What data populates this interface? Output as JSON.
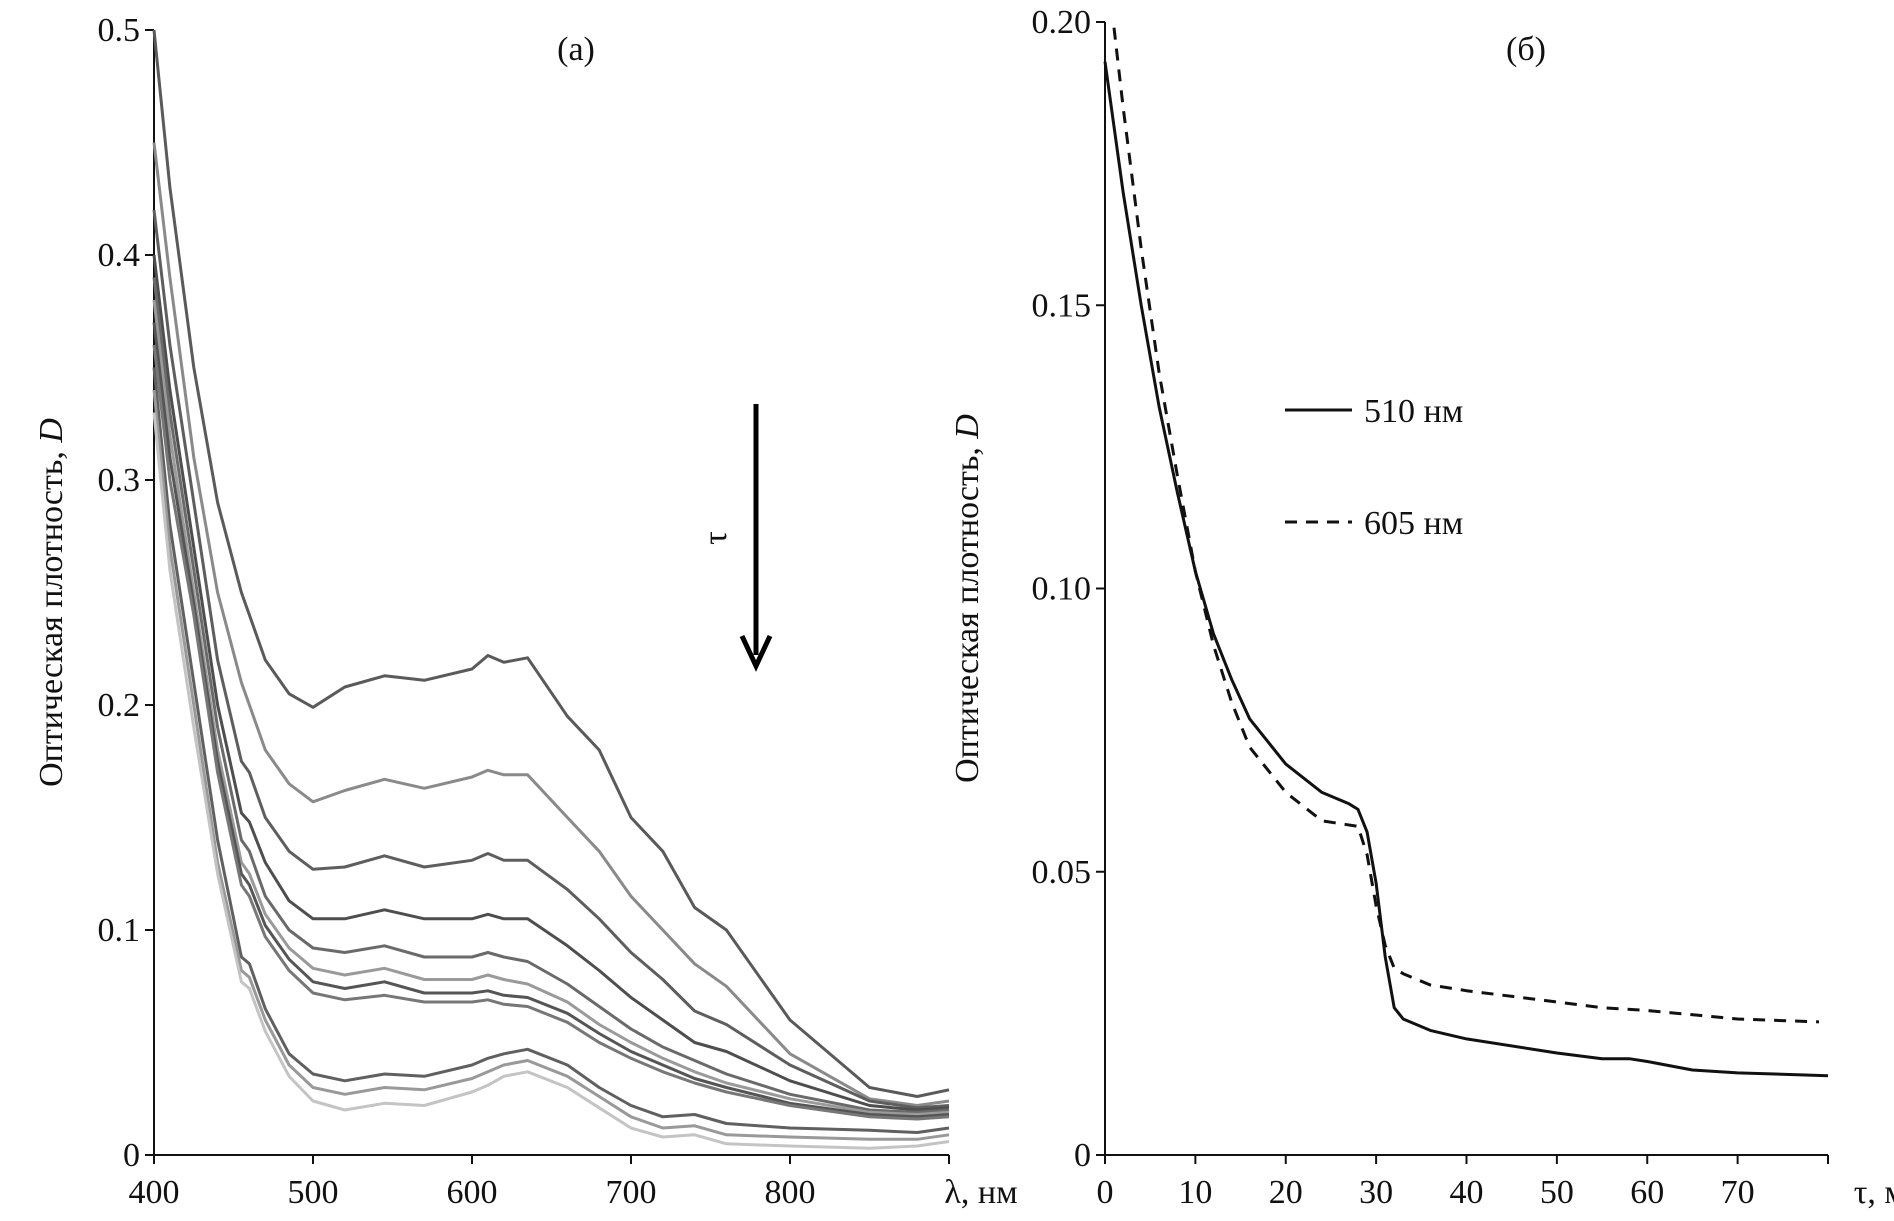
{
  "chart_data": [
    {
      "type": "line",
      "panel_label": "(a)",
      "ylabel_prefix": "Оптическая плотность, ",
      "ylabel_italic": "D",
      "xlabel": "λ, нм",
      "xlim": [
        400,
        900
      ],
      "ylim": [
        0,
        0.5
      ],
      "xticks": [
        400,
        500,
        600,
        700,
        800,
        900
      ],
      "xtick_labels": [
        "400",
        "500",
        "600",
        "700",
        "800",
        ""
      ],
      "yticks": [
        0,
        0.1,
        0.2,
        0.3,
        0.4,
        0.5
      ],
      "ytick_labels": [
        "0",
        "0.1",
        "0.2",
        "0.3",
        "0.4",
        "0.5"
      ],
      "grid": false,
      "annotation": {
        "text": "τ",
        "arrow": "down",
        "meaning": "increasing time"
      },
      "x": [
        400,
        410,
        425,
        440,
        455,
        460,
        470,
        485,
        500,
        520,
        545,
        570,
        600,
        610,
        620,
        635,
        660,
        680,
        700,
        720,
        740,
        760,
        800,
        850,
        880,
        900
      ],
      "series": [
        {
          "color": "#5a5a5a",
          "values": [
            0.5,
            0.43,
            0.35,
            0.29,
            0.25,
            0.24,
            0.22,
            0.205,
            0.199,
            0.208,
            0.213,
            0.211,
            0.216,
            0.222,
            0.219,
            0.221,
            0.195,
            0.18,
            0.15,
            0.135,
            0.11,
            0.1,
            0.06,
            0.03,
            0.026,
            0.029
          ]
        },
        {
          "color": "#8a8a8a",
          "values": [
            0.45,
            0.39,
            0.31,
            0.25,
            0.21,
            0.2,
            0.18,
            0.165,
            0.157,
            0.162,
            0.167,
            0.163,
            0.168,
            0.171,
            0.169,
            0.169,
            0.15,
            0.135,
            0.115,
            0.1,
            0.085,
            0.075,
            0.045,
            0.025,
            0.022,
            0.024
          ]
        },
        {
          "color": "#5e5e5e",
          "values": [
            0.42,
            0.36,
            0.29,
            0.22,
            0.175,
            0.17,
            0.15,
            0.135,
            0.127,
            0.128,
            0.133,
            0.128,
            0.131,
            0.134,
            0.131,
            0.131,
            0.118,
            0.105,
            0.09,
            0.078,
            0.064,
            0.058,
            0.04,
            0.024,
            0.021,
            0.022
          ]
        },
        {
          "color": "#4e4e4e",
          "values": [
            0.4,
            0.34,
            0.27,
            0.2,
            0.152,
            0.148,
            0.13,
            0.113,
            0.105,
            0.105,
            0.109,
            0.105,
            0.105,
            0.107,
            0.105,
            0.105,
            0.093,
            0.082,
            0.07,
            0.06,
            0.05,
            0.046,
            0.033,
            0.022,
            0.02,
            0.021
          ]
        },
        {
          "color": "#6a6a6a",
          "values": [
            0.39,
            0.33,
            0.26,
            0.19,
            0.14,
            0.135,
            0.115,
            0.1,
            0.092,
            0.09,
            0.093,
            0.088,
            0.088,
            0.09,
            0.088,
            0.086,
            0.076,
            0.066,
            0.056,
            0.048,
            0.042,
            0.036,
            0.027,
            0.02,
            0.019,
            0.02
          ]
        },
        {
          "color": "#9a9a9a",
          "values": [
            0.38,
            0.32,
            0.25,
            0.18,
            0.13,
            0.125,
            0.107,
            0.092,
            0.083,
            0.08,
            0.083,
            0.078,
            0.078,
            0.08,
            0.078,
            0.076,
            0.068,
            0.058,
            0.05,
            0.043,
            0.037,
            0.032,
            0.025,
            0.019,
            0.018,
            0.019
          ]
        },
        {
          "color": "#555555",
          "values": [
            0.37,
            0.31,
            0.245,
            0.175,
            0.125,
            0.12,
            0.102,
            0.087,
            0.077,
            0.074,
            0.077,
            0.072,
            0.072,
            0.073,
            0.071,
            0.07,
            0.063,
            0.054,
            0.046,
            0.04,
            0.034,
            0.03,
            0.023,
            0.018,
            0.017,
            0.018
          ]
        },
        {
          "color": "#777777",
          "values": [
            0.36,
            0.3,
            0.24,
            0.17,
            0.12,
            0.115,
            0.097,
            0.082,
            0.072,
            0.069,
            0.071,
            0.068,
            0.068,
            0.069,
            0.067,
            0.066,
            0.059,
            0.05,
            0.043,
            0.037,
            0.032,
            0.028,
            0.022,
            0.017,
            0.016,
            0.017
          ]
        },
        {
          "color": "#606060",
          "values": [
            0.35,
            0.28,
            0.21,
            0.14,
            0.088,
            0.085,
            0.065,
            0.045,
            0.036,
            0.033,
            0.036,
            0.035,
            0.04,
            0.043,
            0.045,
            0.047,
            0.04,
            0.03,
            0.022,
            0.017,
            0.018,
            0.014,
            0.012,
            0.011,
            0.01,
            0.012
          ]
        },
        {
          "color": "#999999",
          "values": [
            0.34,
            0.27,
            0.2,
            0.13,
            0.082,
            0.079,
            0.06,
            0.04,
            0.03,
            0.027,
            0.03,
            0.029,
            0.034,
            0.037,
            0.04,
            0.042,
            0.035,
            0.026,
            0.017,
            0.012,
            0.013,
            0.009,
            0.008,
            0.007,
            0.007,
            0.009
          ]
        },
        {
          "color": "#c4c4c4",
          "values": [
            0.33,
            0.26,
            0.19,
            0.125,
            0.077,
            0.074,
            0.055,
            0.035,
            0.024,
            0.02,
            0.023,
            0.022,
            0.028,
            0.031,
            0.035,
            0.037,
            0.03,
            0.021,
            0.012,
            0.008,
            0.009,
            0.005,
            0.004,
            0.003,
            0.004,
            0.006
          ]
        }
      ]
    },
    {
      "type": "line",
      "panel_label": "(б)",
      "ylabel_prefix": "Оптическая плотность, ",
      "ylabel_italic": "D",
      "xlabel": "τ, мин",
      "xlim": [
        0,
        80
      ],
      "ylim": [
        0,
        0.2
      ],
      "xticks": [
        0,
        10,
        20,
        30,
        40,
        50,
        60,
        70,
        80
      ],
      "xtick_labels": [
        "0",
        "10",
        "20",
        "30",
        "40",
        "50",
        "60",
        "70",
        ""
      ],
      "yticks": [
        0,
        0.05,
        0.1,
        0.15,
        0.2
      ],
      "ytick_labels": [
        "0",
        "0.05",
        "0.10",
        "0.15",
        "0.20"
      ],
      "grid": false,
      "legend_placement": "center-left",
      "series": [
        {
          "name": "510 нм",
          "style": "solid",
          "color": "#111111",
          "x": [
            0,
            2,
            4,
            6,
            8,
            10,
            12,
            14,
            16,
            20,
            24,
            27,
            28,
            29,
            30,
            31,
            32,
            33,
            36,
            40,
            50,
            55,
            58,
            60,
            65,
            70,
            80
          ],
          "values": [
            0.193,
            0.17,
            0.15,
            0.132,
            0.117,
            0.103,
            0.092,
            0.084,
            0.077,
            0.069,
            0.064,
            0.062,
            0.061,
            0.057,
            0.048,
            0.035,
            0.026,
            0.024,
            0.022,
            0.0205,
            0.018,
            0.017,
            0.017,
            0.0165,
            0.015,
            0.0145,
            0.014
          ]
        },
        {
          "name": "605 нм",
          "style": "dashed",
          "color": "#111111",
          "x": [
            1,
            2,
            4,
            6,
            8,
            10,
            12,
            14,
            16,
            20,
            24,
            28,
            29,
            30,
            31,
            32,
            33,
            36,
            40,
            50,
            55,
            60,
            70,
            79
          ],
          "values": [
            0.199,
            0.185,
            0.16,
            0.138,
            0.12,
            0.103,
            0.09,
            0.08,
            0.072,
            0.064,
            0.059,
            0.058,
            0.053,
            0.044,
            0.037,
            0.033,
            0.032,
            0.03,
            0.029,
            0.027,
            0.026,
            0.0255,
            0.024,
            0.0235
          ]
        }
      ]
    }
  ]
}
